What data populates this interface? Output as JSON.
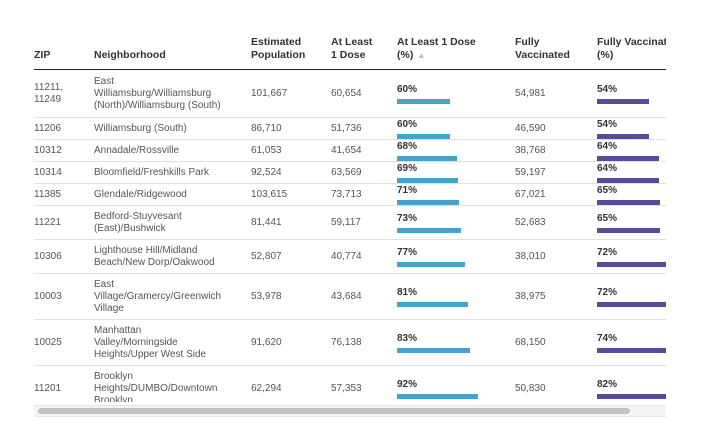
{
  "table": {
    "headers": {
      "zip": "ZIP",
      "neighborhood": "Neighborhood",
      "population": "Estimated Population",
      "at_least_1_dose": "At Least 1 Dose",
      "at_least_1_dose_pct": "At Least 1 Dose (%)",
      "fully_vaccinated": "Fully Vaccinated",
      "fully_vaccinated_pct": "Fully Vaccinated (%)"
    },
    "sort_indicator": "▲",
    "rows": [
      {
        "zip": "11211, 11249",
        "neighborhood": "East Williamsburg/Williamsburg (North)/Williamsburg (South)",
        "population": "101,667",
        "dose1": "60,654",
        "dose1_pct": "60%",
        "dose1_frac": 0.6,
        "full": "54,981",
        "full_pct": "54%",
        "full_frac": 0.54
      },
      {
        "zip": "11206",
        "neighborhood": "Williamsburg (South)",
        "population": "86,710",
        "dose1": "51,736",
        "dose1_pct": "60%",
        "dose1_frac": 0.6,
        "full": "46,590",
        "full_pct": "54%",
        "full_frac": 0.54
      },
      {
        "zip": "10312",
        "neighborhood": "Annadale/Rossville",
        "population": "61,053",
        "dose1": "41,654",
        "dose1_pct": "68%",
        "dose1_frac": 0.68,
        "full": "38,768",
        "full_pct": "64%",
        "full_frac": 0.64
      },
      {
        "zip": "10314",
        "neighborhood": "Bloomfield/Freshkills Park",
        "population": "92,524",
        "dose1": "63,569",
        "dose1_pct": "69%",
        "dose1_frac": 0.69,
        "full": "59,197",
        "full_pct": "64%",
        "full_frac": 0.64
      },
      {
        "zip": "11385",
        "neighborhood": "Glendale/Ridgewood",
        "population": "103,615",
        "dose1": "73,713",
        "dose1_pct": "71%",
        "dose1_frac": 0.71,
        "full": "67,021",
        "full_pct": "65%",
        "full_frac": 0.65
      },
      {
        "zip": "11221",
        "neighborhood": "Bedford-Stuyvesant (East)/Bushwick",
        "population": "81,441",
        "dose1": "59,117",
        "dose1_pct": "73%",
        "dose1_frac": 0.73,
        "full": "52,683",
        "full_pct": "65%",
        "full_frac": 0.65
      },
      {
        "zip": "10306",
        "neighborhood": "Lighthouse Hill/Midland Beach/New Dorp/Oakwood",
        "population": "52,807",
        "dose1": "40,774",
        "dose1_pct": "77%",
        "dose1_frac": 0.77,
        "full": "38,010",
        "full_pct": "72%",
        "full_frac": 0.72
      },
      {
        "zip": "10003",
        "neighborhood": "East Village/Gramercy/Greenwich Village",
        "population": "53,978",
        "dose1": "43,684",
        "dose1_pct": "81%",
        "dose1_frac": 0.81,
        "full": "38,975",
        "full_pct": "72%",
        "full_frac": 0.72
      },
      {
        "zip": "10025",
        "neighborhood": "Manhattan Valley/Morningside Heights/Upper West Side",
        "population": "91,620",
        "dose1": "76,138",
        "dose1_pct": "83%",
        "dose1_frac": 0.83,
        "full": "68,150",
        "full_pct": "74%",
        "full_frac": 0.74
      },
      {
        "zip": "11201",
        "neighborhood": "Brooklyn Heights/DUMBO/Downtown Brooklyn",
        "population": "62,294",
        "dose1": "57,353",
        "dose1_pct": "92%",
        "dose1_frac": 0.92,
        "full": "50,830",
        "full_pct": "82%",
        "full_frac": 0.82
      }
    ]
  },
  "colors": {
    "dose1_bar": "#46a2c9",
    "full_bar": "#5a4a9a"
  }
}
